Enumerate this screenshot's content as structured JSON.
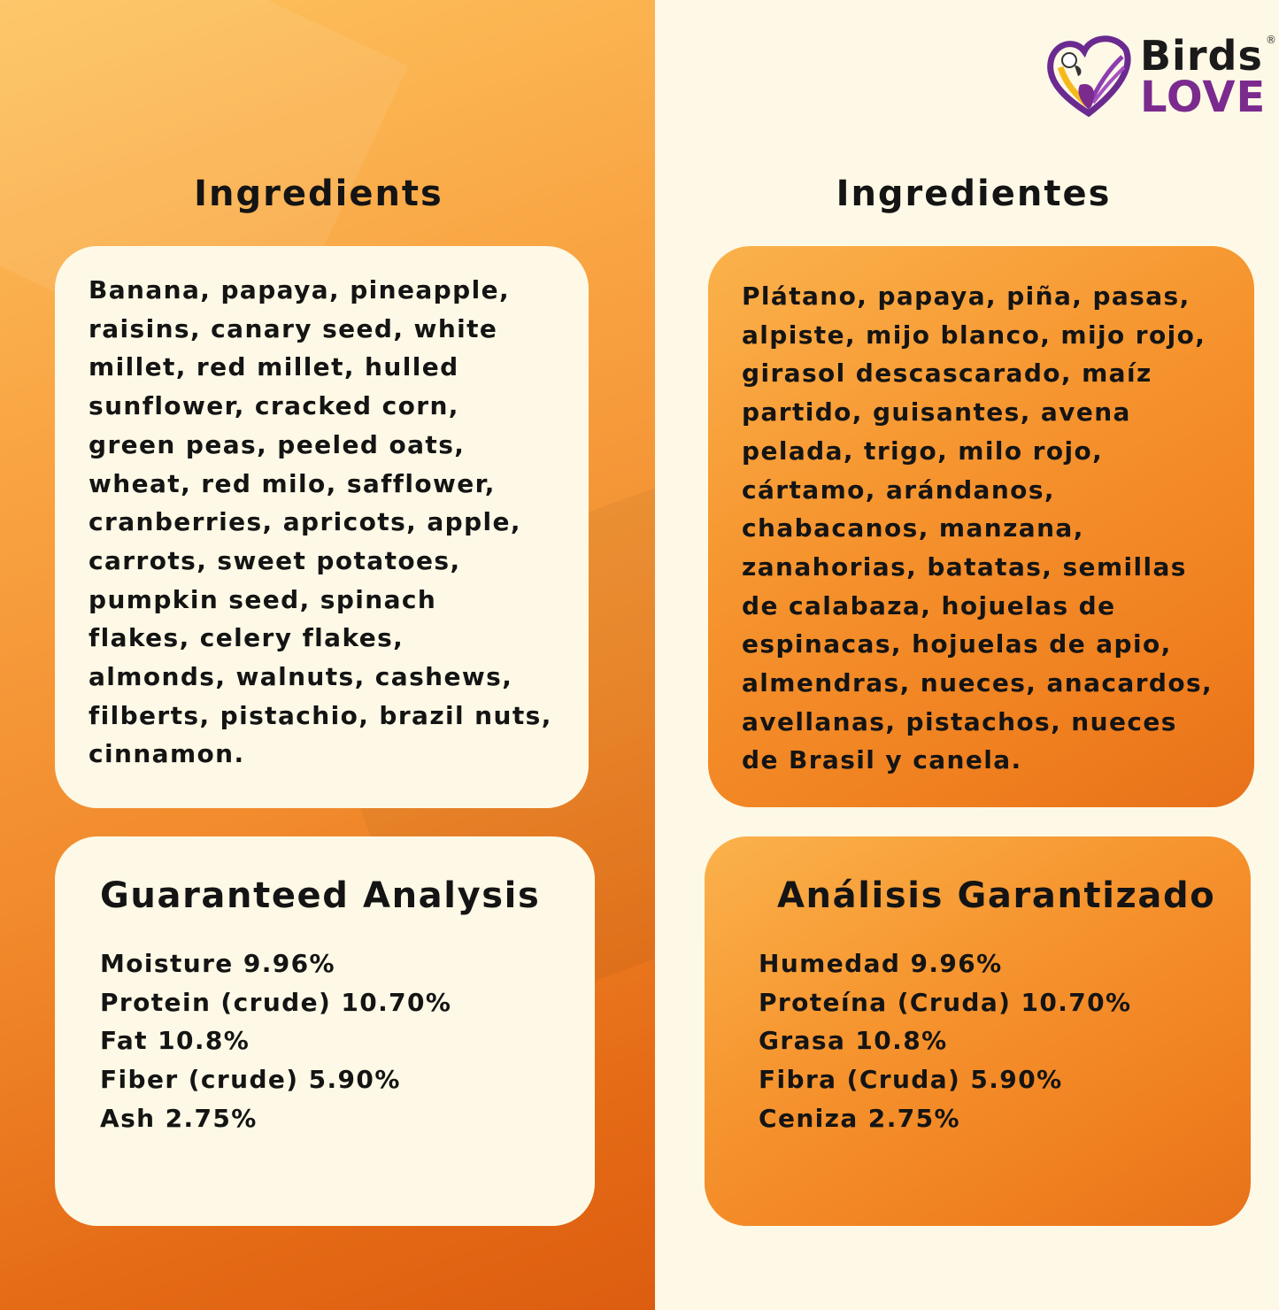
{
  "brand": {
    "line1": "Birds",
    "line2": "LOVE",
    "reg": "®",
    "colors": {
      "purple": "#7b2a8e",
      "yellow": "#f6b91c",
      "black": "#1a1a1a"
    }
  },
  "english": {
    "ingredients_title": "Ingredients",
    "ingredients_lines": [
      "Banana, papaya, pineapple,",
      "raisins, canary seed, white",
      "millet, red millet, hulled",
      "sunflower, cracked corn,",
      "green peas, peeled oats,",
      "wheat, red milo, safflower,",
      "cranberries, apricots, apple,",
      "carrots, sweet potatoes,",
      "pumpkin seed, spinach",
      "flakes, celery flakes,",
      "almonds, walnuts, cashews,",
      "filberts, pistachio, brazil nuts,",
      "cinnamon."
    ],
    "analysis_title": "Guaranteed Analysis",
    "analysis": [
      "Moisture  9.96%",
      "Protein (crude) 10.70%",
      "Fat 10.8%",
      "Fiber (crude)  5.90%",
      "Ash 2.75%"
    ]
  },
  "spanish": {
    "ingredients_title": "Ingredientes",
    "ingredients_lines": [
      "Plátano, papaya, piña, pasas,",
      "alpiste, mijo blanco, mijo rojo,",
      "girasol descascarado, maíz",
      "partido, guisantes, avena",
      "pelada, trigo, milo rojo,",
      "cártamo, arándanos,",
      "chabacanos, manzana,",
      "zanahorias, batatas, semillas",
      "de calabaza, hojuelas de",
      "espinacas, hojuelas de apio,",
      "almendras, nueces, anacardos,",
      "avellanas, pistachos, nueces",
      "de Brasil y canela."
    ],
    "analysis_title": "Análisis Garantizado",
    "analysis": [
      "Humedad  9.96%",
      "Proteína (Cruda) 10.70%",
      "Grasa 10.8%",
      "Fibra (Cruda) 5.90%",
      "Ceniza  2.75%"
    ]
  }
}
